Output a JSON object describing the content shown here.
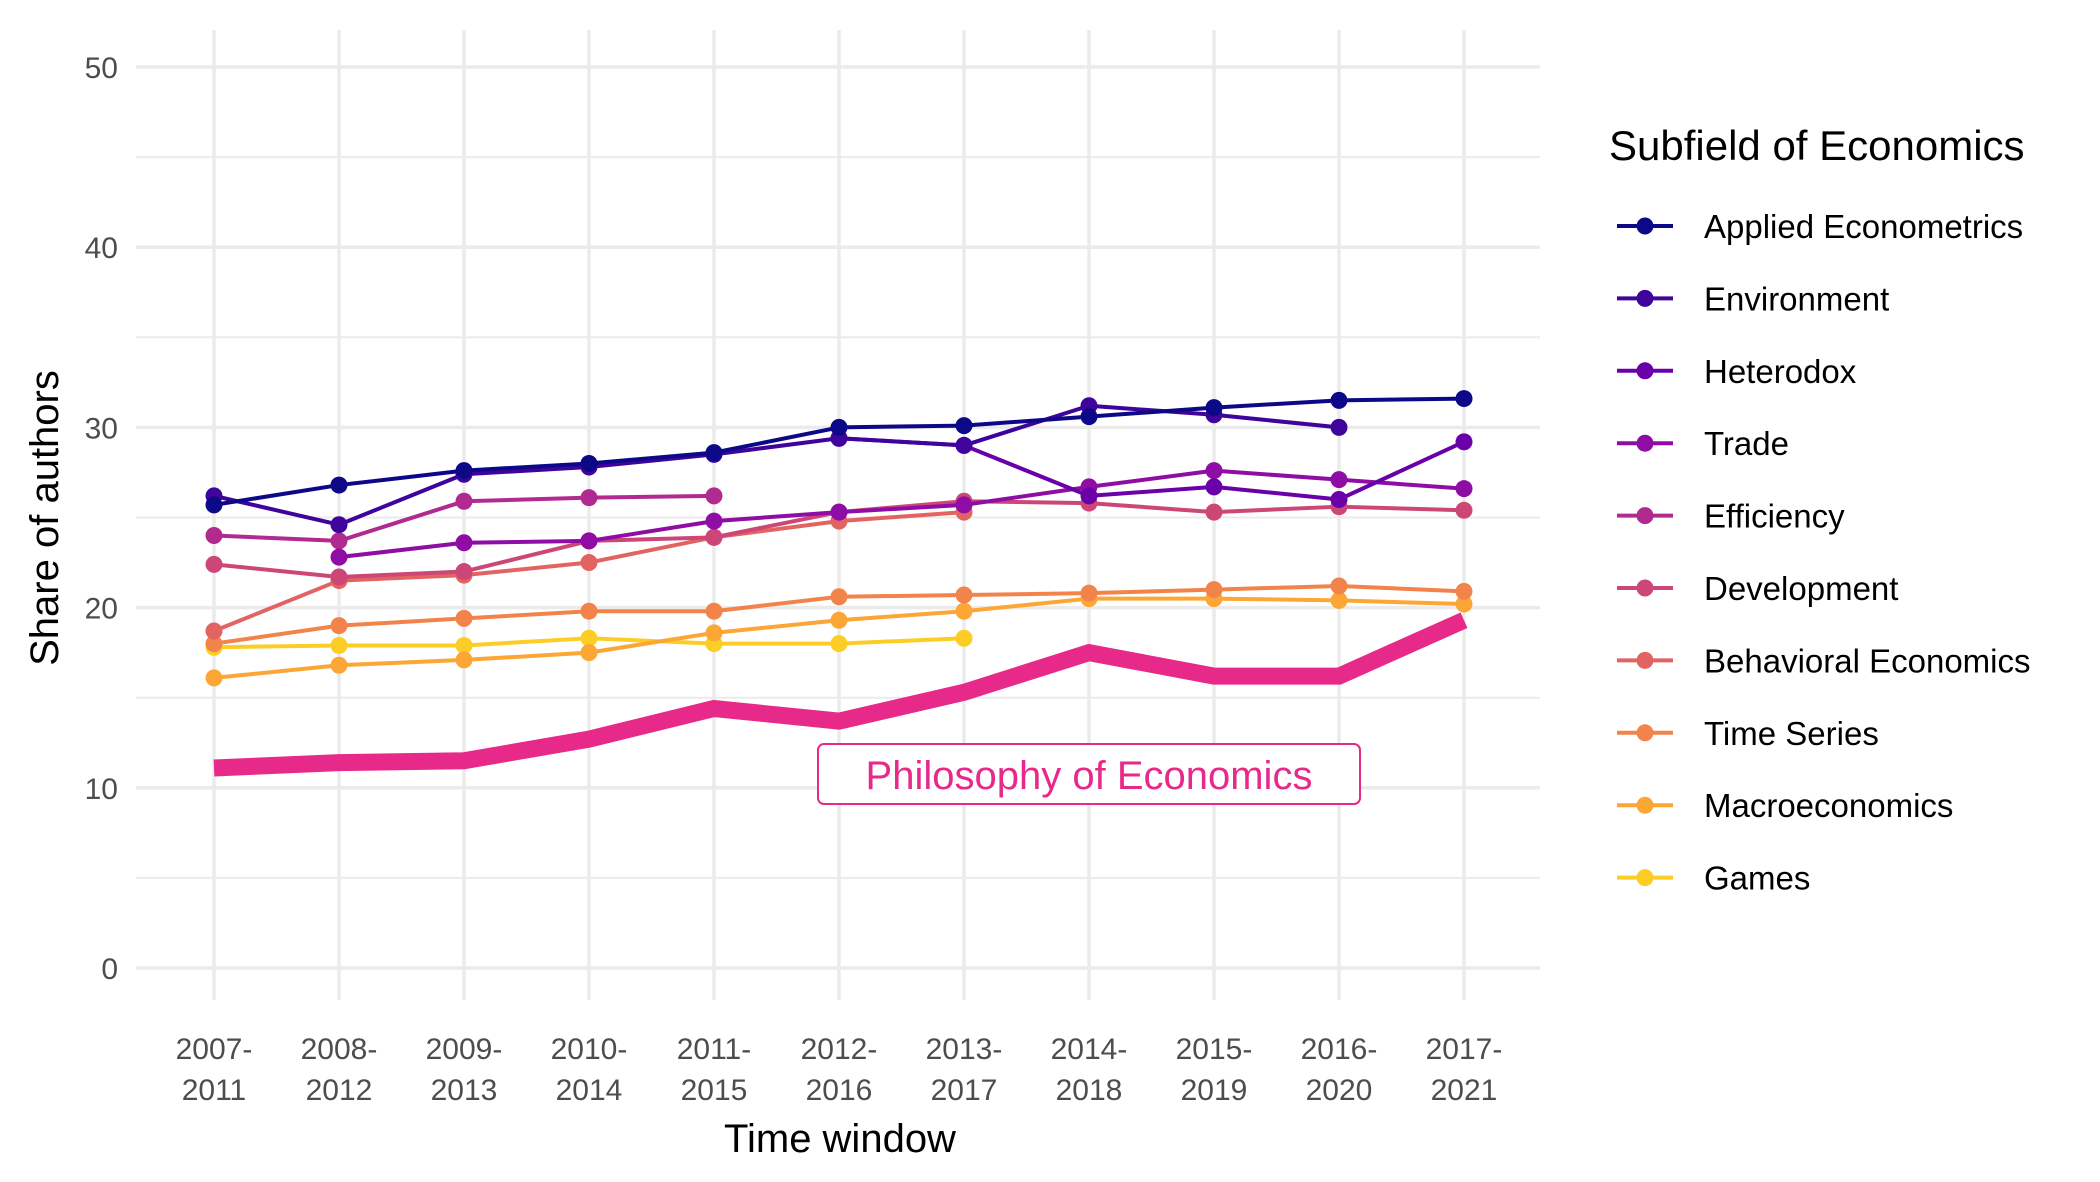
{
  "chart_data": {
    "type": "line",
    "xlabel": "Time window",
    "ylabel": "Share of authors",
    "ylim": [
      0,
      50
    ],
    "yticks": [
      "0",
      "10",
      "20",
      "30",
      "40",
      "50"
    ],
    "grid": true,
    "legend_title": "Subfield of Economics",
    "legend_position": "right",
    "categories": [
      [
        "2007-",
        "2011"
      ],
      [
        "2008-",
        "2012"
      ],
      [
        "2009-",
        "2013"
      ],
      [
        "2010-",
        "2014"
      ],
      [
        "2011-",
        "2015"
      ],
      [
        "2012-",
        "2016"
      ],
      [
        "2013-",
        "2017"
      ],
      [
        "2014-",
        "2018"
      ],
      [
        "2015-",
        "2019"
      ],
      [
        "2016-",
        "2020"
      ],
      [
        "2017-",
        "2021"
      ]
    ],
    "series": [
      {
        "name": "Applied Econometrics",
        "color": "#0d0887",
        "values": [
          25.7,
          26.8,
          27.6,
          28.0,
          28.6,
          30.0,
          30.1,
          30.6,
          31.1,
          31.5,
          31.6
        ]
      },
      {
        "name": "Environment",
        "color": "#3e049c",
        "values": [
          26.2,
          24.6,
          27.4,
          27.8,
          28.5,
          29.4,
          29.0,
          31.2,
          30.7,
          30.0,
          null
        ]
      },
      {
        "name": "Heterodox",
        "color": "#6a00a8",
        "values": [
          null,
          null,
          null,
          null,
          null,
          29.4,
          29.0,
          26.2,
          26.7,
          26.0,
          29.2
        ]
      },
      {
        "name": "Trade",
        "color": "#8f0da4",
        "values": [
          null,
          22.8,
          23.6,
          23.7,
          24.8,
          25.3,
          25.7,
          26.7,
          27.6,
          27.1,
          26.6
        ]
      },
      {
        "name": "Efficiency",
        "color": "#b12a90",
        "values": [
          24.0,
          23.7,
          25.9,
          26.1,
          26.2,
          null,
          null,
          null,
          null,
          null,
          null
        ]
      },
      {
        "name": "Development",
        "color": "#cc4778",
        "values": [
          22.4,
          21.7,
          22.0,
          23.7,
          23.9,
          25.3,
          25.9,
          25.8,
          25.3,
          25.6,
          25.4
        ]
      },
      {
        "name": "Behavioral Economics",
        "color": "#e16462",
        "values": [
          18.7,
          21.5,
          21.8,
          22.5,
          23.9,
          24.8,
          25.3,
          null,
          null,
          null,
          null
        ]
      },
      {
        "name": "Time Series",
        "color": "#f2844b",
        "values": [
          18.0,
          19.0,
          19.4,
          19.8,
          19.8,
          20.6,
          20.7,
          20.8,
          21.0,
          21.2,
          20.9
        ]
      },
      {
        "name": "Macroeconomics",
        "color": "#fca636",
        "values": [
          16.1,
          16.8,
          17.1,
          17.5,
          18.6,
          19.3,
          19.8,
          20.5,
          20.5,
          20.4,
          20.2
        ]
      },
      {
        "name": "Games",
        "color": "#fcce25",
        "values": [
          17.8,
          17.9,
          17.9,
          18.3,
          18.0,
          18.0,
          18.3,
          null,
          null,
          null,
          null
        ]
      }
    ],
    "highlight": {
      "name": "Philosophy of Economics",
      "color": "#e7298a",
      "values": [
        11.1,
        11.4,
        11.5,
        12.7,
        14.4,
        13.7,
        15.3,
        17.5,
        16.2,
        16.2,
        19.3
      ],
      "label": "Philosophy of Economics"
    }
  }
}
